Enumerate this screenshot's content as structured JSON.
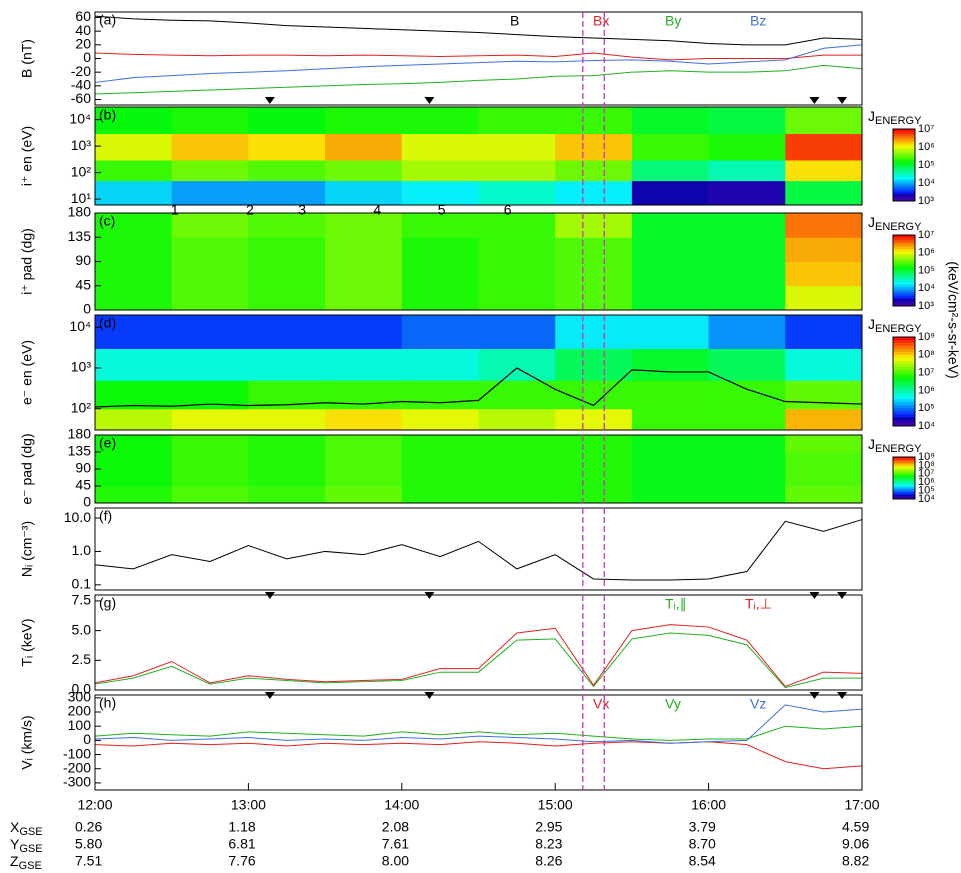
{
  "time": {
    "xlim": [
      12,
      17
    ],
    "xticks": [
      {
        "value": 12,
        "label": "12:00"
      },
      {
        "value": 13,
        "label": "13:00"
      },
      {
        "value": 14,
        "label": "14:00"
      },
      {
        "value": 15,
        "label": "15:00"
      },
      {
        "value": 16,
        "label": "16:00"
      },
      {
        "value": 17,
        "label": "17:00"
      }
    ],
    "x": [
      12,
      12.25,
      12.5,
      12.75,
      13,
      13.25,
      13.5,
      13.75,
      14,
      14.25,
      14.5,
      14.75,
      15,
      15.25,
      15.5,
      15.75,
      16,
      16.25,
      16.5,
      16.75,
      17
    ],
    "xbins": [
      12,
      12.5,
      13,
      13.5,
      14,
      14.5,
      15,
      15.5,
      16,
      16.5,
      17
    ]
  },
  "event_lines": {
    "color": "#d030c0",
    "x": [
      15.18,
      15.32
    ]
  },
  "triangles": [
    13.14,
    14.18,
    16.69,
    16.87
  ],
  "event_labels": [
    {
      "x": 12.52,
      "label": "1"
    },
    {
      "x": 13.01,
      "label": "2"
    },
    {
      "x": 13.35,
      "label": "3"
    },
    {
      "x": 13.84,
      "label": "4"
    },
    {
      "x": 14.26,
      "label": "5"
    },
    {
      "x": 14.69,
      "label": "6"
    }
  ],
  "colorbar_label": {
    "main": "J",
    "sub": "ENERGY"
  },
  "colorbar_unit": "(keV/cm²-s-sr-keV)",
  "chart_data": [
    {
      "type": "line",
      "label": "(a)",
      "ylabel": "B (nT)",
      "ylim": [
        -68,
        68
      ],
      "yticks": [
        -60,
        -40,
        -20,
        0,
        20,
        40,
        60
      ],
      "series": [
        {
          "name": "B",
          "color": "#000000",
          "values": [
            62,
            58,
            56,
            55,
            52,
            48,
            46,
            44,
            42,
            40,
            38,
            35,
            32,
            30,
            28,
            26,
            22,
            20,
            20,
            30,
            28
          ]
        },
        {
          "name": "Bx",
          "color": "#e02020",
          "values": [
            8,
            6,
            5,
            4,
            5,
            5,
            4,
            5,
            4,
            3,
            4,
            5,
            3,
            8,
            2,
            -2,
            0,
            0,
            0,
            5,
            5
          ]
        },
        {
          "name": "By",
          "color": "#20b020",
          "values": [
            -52,
            -50,
            -48,
            -46,
            -44,
            -42,
            -40,
            -38,
            -37,
            -35,
            -32,
            -30,
            -26,
            -25,
            -20,
            -18,
            -20,
            -20,
            -18,
            -10,
            -15
          ]
        },
        {
          "name": "Bz",
          "color": "#4070e0",
          "values": [
            -35,
            -28,
            -25,
            -22,
            -20,
            -18,
            -15,
            -12,
            -10,
            -8,
            -6,
            -4,
            -5,
            -3,
            -2,
            -4,
            -8,
            -5,
            -2,
            15,
            20
          ]
        }
      ]
    },
    {
      "type": "heatmap",
      "label": "(b)",
      "ylabel": "i⁺ en (eV)",
      "log": true,
      "ylim": [
        6,
        30000
      ],
      "yticks": [
        {
          "value": 10,
          "label": "10¹"
        },
        {
          "value": 100,
          "label": "10²"
        },
        {
          "value": 1000,
          "label": "10³"
        },
        {
          "value": 10000,
          "label": "10⁴"
        }
      ],
      "ybins": [
        6,
        50,
        300,
        3000,
        30000
      ],
      "clim": [
        3,
        7
      ],
      "cticks": [
        {
          "value": 3,
          "label": "10³"
        },
        {
          "value": 4,
          "label": "10⁴"
        },
        {
          "value": 5,
          "label": "10⁵"
        },
        {
          "value": 6,
          "label": "10⁶"
        },
        {
          "value": 7,
          "label": "10⁷"
        }
      ],
      "z": [
        [
          4.2,
          4.0,
          4.0,
          4.2,
          4.3,
          4.5,
          4.3,
          3.4,
          3.3,
          5.0
        ],
        [
          5.4,
          5.6,
          5.5,
          5.6,
          5.8,
          5.8,
          5.6,
          4.8,
          4.6,
          6.2
        ],
        [
          6.0,
          6.3,
          6.2,
          6.4,
          6.0,
          6.0,
          6.3,
          5.4,
          5.3,
          6.8
        ],
        [
          5.2,
          5.3,
          5.2,
          5.3,
          5.3,
          5.4,
          5.4,
          5.1,
          5.0,
          5.6
        ]
      ]
    },
    {
      "type": "heatmap",
      "label": "(c)",
      "ylabel": "i⁺ pad (dg)",
      "ylim": [
        0,
        180
      ],
      "yticks": [
        0,
        45,
        90,
        135,
        180
      ],
      "ybins": [
        0,
        45,
        90,
        135,
        180
      ],
      "clim": [
        3,
        7
      ],
      "cticks": [
        {
          "value": 3,
          "label": "10³"
        },
        {
          "value": 4,
          "label": "10⁴"
        },
        {
          "value": 5,
          "label": "10⁵"
        },
        {
          "value": 6,
          "label": "10⁶"
        },
        {
          "value": 7,
          "label": "10⁷"
        }
      ],
      "z": [
        [
          5.3,
          5.5,
          5.4,
          5.6,
          5.3,
          5.4,
          5.5,
          5.1,
          5.1,
          6.0
        ],
        [
          5.3,
          5.5,
          5.4,
          5.6,
          5.3,
          5.4,
          5.5,
          5.1,
          5.1,
          6.3
        ],
        [
          5.3,
          5.5,
          5.4,
          5.6,
          5.3,
          5.4,
          5.5,
          5.1,
          5.1,
          6.4
        ],
        [
          5.3,
          5.6,
          5.5,
          5.6,
          5.4,
          5.4,
          5.8,
          5.1,
          5.1,
          6.6
        ]
      ]
    },
    {
      "type": "heatmap",
      "label": "(d)",
      "ylabel": "e⁻ en (eV)",
      "log": true,
      "ylim": [
        30,
        20000
      ],
      "yticks": [
        {
          "value": 100,
          "label": "10²"
        },
        {
          "value": 1000,
          "label": "10³"
        },
        {
          "value": 10000,
          "label": "10⁴"
        }
      ],
      "ybins": [
        30,
        100,
        500,
        3000,
        20000
      ],
      "clim": [
        4,
        9
      ],
      "cticks": [
        {
          "value": 4,
          "label": "10⁴"
        },
        {
          "value": 5,
          "label": "10⁵"
        },
        {
          "value": 6,
          "label": "10⁶"
        },
        {
          "value": 7,
          "label": "10⁷"
        },
        {
          "value": 8,
          "label": "10⁸"
        },
        {
          "value": 9,
          "label": "10⁹"
        }
      ],
      "z": [
        [
          7.6,
          7.8,
          7.8,
          8.0,
          7.8,
          7.6,
          7.8,
          7.0,
          7.0,
          8.2
        ],
        [
          6.8,
          6.8,
          7.0,
          7.0,
          7.0,
          7.0,
          7.0,
          7.0,
          7.0,
          7.2
        ],
        [
          5.8,
          5.8,
          5.8,
          5.8,
          5.8,
          6.0,
          6.4,
          6.6,
          6.4,
          5.8
        ],
        [
          4.8,
          4.8,
          4.8,
          4.8,
          5.0,
          5.0,
          5.6,
          5.6,
          5.2,
          4.8
        ]
      ],
      "overlay": {
        "color": "#000000",
        "values": [
          110,
          120,
          115,
          130,
          120,
          125,
          140,
          130,
          150,
          140,
          160,
          1000,
          300,
          120,
          900,
          800,
          800,
          300,
          150,
          140,
          130
        ]
      }
    },
    {
      "type": "heatmap",
      "label": "(e)",
      "ylabel": "e⁻ pad (dg)",
      "ylim": [
        0,
        180
      ],
      "yticks": [
        0,
        45,
        90,
        135,
        180
      ],
      "ybins": [
        0,
        45,
        90,
        135,
        180
      ],
      "clim": [
        4,
        9
      ],
      "cticks": [
        {
          "value": 4,
          "label": "10⁴"
        },
        {
          "value": 5,
          "label": "10⁵"
        },
        {
          "value": 6,
          "label": "10⁶"
        },
        {
          "value": 7,
          "label": "10⁷"
        },
        {
          "value": 8,
          "label": "10⁸"
        },
        {
          "value": 9,
          "label": "10⁹"
        }
      ],
      "z": [
        [
          6.9,
          7.1,
          7.0,
          7.2,
          6.9,
          6.9,
          6.9,
          6.7,
          6.7,
          7.2
        ],
        [
          6.8,
          7.0,
          6.9,
          7.1,
          6.9,
          6.9,
          6.9,
          6.7,
          6.7,
          7.1
        ],
        [
          6.8,
          7.0,
          6.9,
          7.1,
          6.9,
          6.9,
          6.9,
          6.7,
          6.7,
          7.1
        ],
        [
          6.8,
          7.0,
          6.9,
          7.1,
          6.9,
          6.9,
          6.9,
          6.7,
          6.7,
          7.2
        ]
      ]
    },
    {
      "type": "line",
      "label": "(f)",
      "ylabel": "Nᵢ (cm⁻³)",
      "log": true,
      "ylim": [
        0.07,
        20
      ],
      "yticks": [
        0.1,
        {
          "value": 1,
          "label": "1.0"
        },
        {
          "value": 10,
          "label": "10.0"
        }
      ],
      "series": [
        {
          "name": "Ni",
          "color": "#000000",
          "values": [
            0.4,
            0.3,
            0.8,
            0.5,
            1.5,
            0.6,
            1.0,
            0.8,
            1.6,
            0.7,
            2.0,
            0.3,
            0.8,
            0.15,
            0.14,
            0.14,
            0.15,
            0.25,
            8,
            4,
            9
          ]
        }
      ]
    },
    {
      "type": "line",
      "label": "(g)",
      "ylabel": "Tᵢ (keV)",
      "ylim": [
        0,
        8
      ],
      "yticks": [
        {
          "value": 0,
          "label": "0.0"
        },
        2.5,
        {
          "value": 5,
          "label": "5.0"
        },
        7.5
      ],
      "series": [
        {
          "name": "Tᵢ,∥",
          "color": "#20b020",
          "values": [
            0.5,
            1.0,
            2.0,
            0.5,
            1.0,
            0.8,
            0.6,
            0.7,
            0.8,
            1.5,
            1.5,
            4.2,
            4.3,
            0.3,
            4.3,
            4.8,
            4.6,
            3.8,
            0.2,
            1.0,
            1.0
          ]
        },
        {
          "name": "Tᵢ,⊥",
          "color": "#e02020",
          "values": [
            0.6,
            1.2,
            2.4,
            0.6,
            1.2,
            0.9,
            0.7,
            0.8,
            0.9,
            1.8,
            1.8,
            4.8,
            5.2,
            0.4,
            5.0,
            5.5,
            5.3,
            4.2,
            0.3,
            1.5,
            1.4
          ]
        }
      ]
    },
    {
      "type": "line",
      "label": "(h)",
      "ylabel": "Vᵢ (km/s)",
      "ylim": [
        -350,
        320
      ],
      "yticks": [
        -300,
        -200,
        -100,
        0,
        100,
        200,
        300
      ],
      "series": [
        {
          "name": "Vx",
          "color": "#e02020",
          "values": [
            -30,
            -40,
            -20,
            -30,
            -20,
            -40,
            -20,
            -30,
            -20,
            -30,
            -10,
            -20,
            -40,
            -20,
            -10,
            -20,
            -10,
            -30,
            -150,
            -200,
            -180
          ]
        },
        {
          "name": "Vy",
          "color": "#20b020",
          "values": [
            30,
            50,
            40,
            30,
            60,
            50,
            40,
            30,
            60,
            40,
            60,
            40,
            50,
            30,
            10,
            0,
            10,
            10,
            100,
            80,
            100
          ]
        },
        {
          "name": "Vz",
          "color": "#4070e0",
          "values": [
            10,
            20,
            0,
            10,
            20,
            0,
            10,
            0,
            20,
            10,
            30,
            20,
            10,
            -10,
            0,
            -20,
            -10,
            0,
            250,
            200,
            220
          ]
        }
      ]
    }
  ],
  "ephemeris": [
    {
      "label": "X",
      "sub": "GSE",
      "values": [
        "0.26",
        "1.18",
        "2.08",
        "2.95",
        "3.79",
        "4.59"
      ]
    },
    {
      "label": "Y",
      "sub": "GSE",
      "values": [
        "5.80",
        "6.81",
        "7.61",
        "8.23",
        "8.70",
        "9.06"
      ]
    },
    {
      "label": "Z",
      "sub": "GSE",
      "values": [
        "7.51",
        "7.76",
        "8.00",
        "8.26",
        "8.54",
        "8.82"
      ]
    }
  ]
}
